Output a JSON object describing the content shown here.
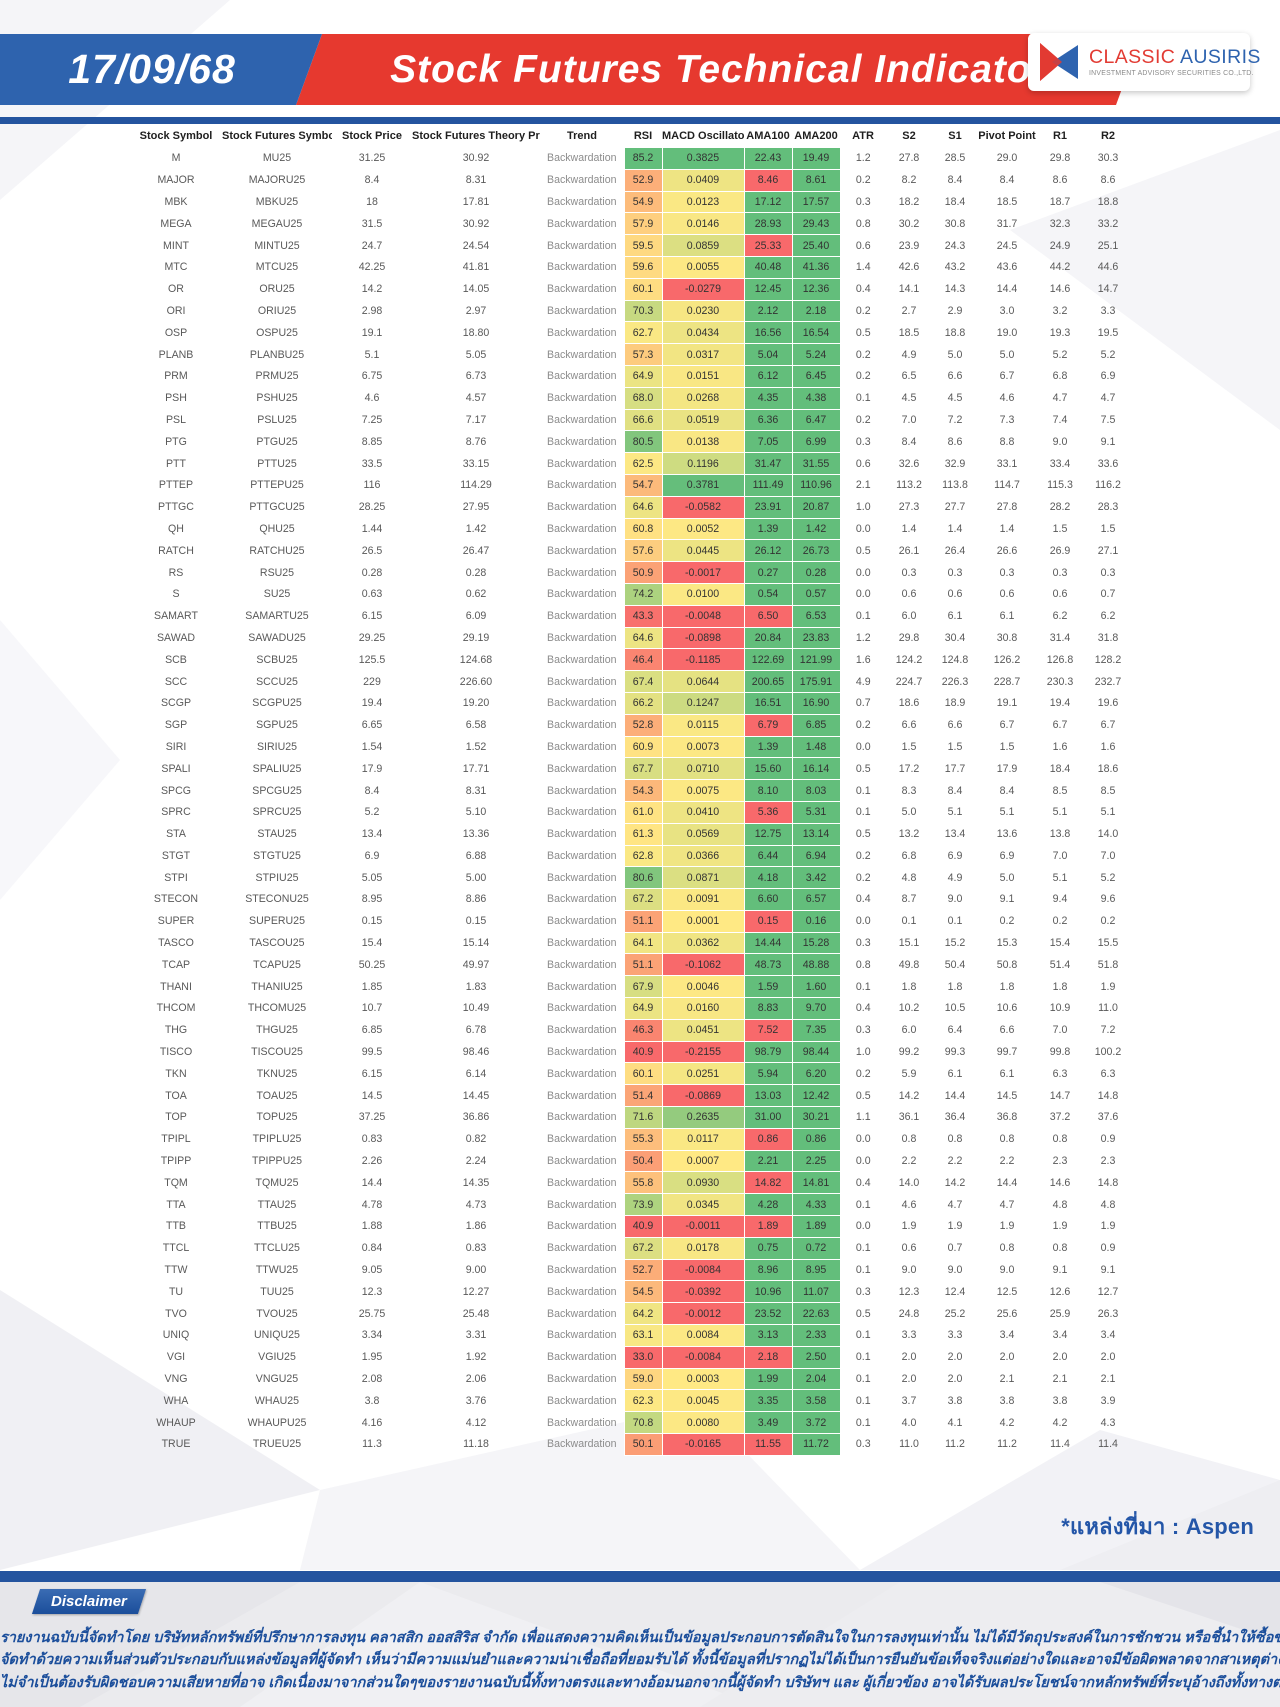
{
  "header": {
    "date": "17/09/68",
    "title": "Stock Futures Technical Indicator",
    "logo": {
      "name_red": "CLASSIC",
      "name_blue": "AUSIRIS",
      "subtitle": "INVESTMENT ADVISORY SECURITIES CO.,LTD."
    }
  },
  "table": {
    "columns": [
      "Stock Symbol",
      "Stock Futures Symbol",
      "Stock Price",
      "Stock Futures Theory Price",
      "Trend",
      "RSI",
      "MACD Oscillator",
      "AMA100",
      "AMA200",
      "ATR",
      "S2",
      "S1",
      "Pivot Point",
      "R1",
      "R2"
    ],
    "rows": [
      [
        "M",
        "MU25",
        "31.25",
        "30.92",
        "Backwardation",
        "85.2",
        "0.3825",
        "22.43",
        "19.49",
        "1.2",
        "27.8",
        "28.5",
        "29.0",
        "29.8",
        "30.3"
      ],
      [
        "MAJOR",
        "MAJORU25",
        "8.4",
        "8.31",
        "Backwardation",
        "52.9",
        "0.0409",
        "8.46",
        "8.61",
        "0.2",
        "8.2",
        "8.4",
        "8.4",
        "8.6",
        "8.6"
      ],
      [
        "MBK",
        "MBKU25",
        "18",
        "17.81",
        "Backwardation",
        "54.9",
        "0.0123",
        "17.12",
        "17.57",
        "0.3",
        "18.2",
        "18.4",
        "18.5",
        "18.7",
        "18.8"
      ],
      [
        "MEGA",
        "MEGAU25",
        "31.5",
        "30.92",
        "Backwardation",
        "57.9",
        "0.0146",
        "28.93",
        "29.43",
        "0.8",
        "30.2",
        "30.8",
        "31.7",
        "32.3",
        "33.2"
      ],
      [
        "MINT",
        "MINTU25",
        "24.7",
        "24.54",
        "Backwardation",
        "59.5",
        "0.0859",
        "25.33",
        "25.40",
        "0.6",
        "23.9",
        "24.3",
        "24.5",
        "24.9",
        "25.1"
      ],
      [
        "MTC",
        "MTCU25",
        "42.25",
        "41.81",
        "Backwardation",
        "59.6",
        "0.0055",
        "40.48",
        "41.36",
        "1.4",
        "42.6",
        "43.2",
        "43.6",
        "44.2",
        "44.6"
      ],
      [
        "OR",
        "ORU25",
        "14.2",
        "14.05",
        "Backwardation",
        "60.1",
        "-0.0279",
        "12.45",
        "12.36",
        "0.4",
        "14.1",
        "14.3",
        "14.4",
        "14.6",
        "14.7"
      ],
      [
        "ORI",
        "ORIU25",
        "2.98",
        "2.97",
        "Backwardation",
        "70.3",
        "0.0230",
        "2.12",
        "2.18",
        "0.2",
        "2.7",
        "2.9",
        "3.0",
        "3.2",
        "3.3"
      ],
      [
        "OSP",
        "OSPU25",
        "19.1",
        "18.80",
        "Backwardation",
        "62.7",
        "0.0434",
        "16.56",
        "16.54",
        "0.5",
        "18.5",
        "18.8",
        "19.0",
        "19.3",
        "19.5"
      ],
      [
        "PLANB",
        "PLANBU25",
        "5.1",
        "5.05",
        "Backwardation",
        "57.3",
        "0.0317",
        "5.04",
        "5.24",
        "0.2",
        "4.9",
        "5.0",
        "5.0",
        "5.2",
        "5.2"
      ],
      [
        "PRM",
        "PRMU25",
        "6.75",
        "6.73",
        "Backwardation",
        "64.9",
        "0.0151",
        "6.12",
        "6.45",
        "0.2",
        "6.5",
        "6.6",
        "6.7",
        "6.8",
        "6.9"
      ],
      [
        "PSH",
        "PSHU25",
        "4.6",
        "4.57",
        "Backwardation",
        "68.0",
        "0.0268",
        "4.35",
        "4.38",
        "0.1",
        "4.5",
        "4.5",
        "4.6",
        "4.7",
        "4.7"
      ],
      [
        "PSL",
        "PSLU25",
        "7.25",
        "7.17",
        "Backwardation",
        "66.6",
        "0.0519",
        "6.36",
        "6.47",
        "0.2",
        "7.0",
        "7.2",
        "7.3",
        "7.4",
        "7.5"
      ],
      [
        "PTG",
        "PTGU25",
        "8.85",
        "8.76",
        "Backwardation",
        "80.5",
        "0.0138",
        "7.05",
        "6.99",
        "0.3",
        "8.4",
        "8.6",
        "8.8",
        "9.0",
        "9.1"
      ],
      [
        "PTT",
        "PTTU25",
        "33.5",
        "33.15",
        "Backwardation",
        "62.5",
        "0.1196",
        "31.47",
        "31.55",
        "0.6",
        "32.6",
        "32.9",
        "33.1",
        "33.4",
        "33.6"
      ],
      [
        "PTTEP",
        "PTTEPU25",
        "116",
        "114.29",
        "Backwardation",
        "54.7",
        "0.3781",
        "111.49",
        "110.96",
        "2.1",
        "113.2",
        "113.8",
        "114.7",
        "115.3",
        "116.2"
      ],
      [
        "PTTGC",
        "PTTGCU25",
        "28.25",
        "27.95",
        "Backwardation",
        "64.6",
        "-0.0582",
        "23.91",
        "20.87",
        "1.0",
        "27.3",
        "27.7",
        "27.8",
        "28.2",
        "28.3"
      ],
      [
        "QH",
        "QHU25",
        "1.44",
        "1.42",
        "Backwardation",
        "60.8",
        "0.0052",
        "1.39",
        "1.42",
        "0.0",
        "1.4",
        "1.4",
        "1.4",
        "1.5",
        "1.5"
      ],
      [
        "RATCH",
        "RATCHU25",
        "26.5",
        "26.47",
        "Backwardation",
        "57.6",
        "0.0445",
        "26.12",
        "26.73",
        "0.5",
        "26.1",
        "26.4",
        "26.6",
        "26.9",
        "27.1"
      ],
      [
        "RS",
        "RSU25",
        "0.28",
        "0.28",
        "Backwardation",
        "50.9",
        "-0.0017",
        "0.27",
        "0.28",
        "0.0",
        "0.3",
        "0.3",
        "0.3",
        "0.3",
        "0.3"
      ],
      [
        "S",
        "SU25",
        "0.63",
        "0.62",
        "Backwardation",
        "74.2",
        "0.0100",
        "0.54",
        "0.57",
        "0.0",
        "0.6",
        "0.6",
        "0.6",
        "0.6",
        "0.7"
      ],
      [
        "SAMART",
        "SAMARTU25",
        "6.15",
        "6.09",
        "Backwardation",
        "43.3",
        "-0.0048",
        "6.50",
        "6.53",
        "0.1",
        "6.0",
        "6.1",
        "6.1",
        "6.2",
        "6.2"
      ],
      [
        "SAWAD",
        "SAWADU25",
        "29.25",
        "29.19",
        "Backwardation",
        "64.6",
        "-0.0898",
        "20.84",
        "23.83",
        "1.2",
        "29.8",
        "30.4",
        "30.8",
        "31.4",
        "31.8"
      ],
      [
        "SCB",
        "SCBU25",
        "125.5",
        "124.68",
        "Backwardation",
        "46.4",
        "-0.1185",
        "122.69",
        "121.99",
        "1.6",
        "124.2",
        "124.8",
        "126.2",
        "126.8",
        "128.2"
      ],
      [
        "SCC",
        "SCCU25",
        "229",
        "226.60",
        "Backwardation",
        "67.4",
        "0.0644",
        "200.65",
        "175.91",
        "4.9",
        "224.7",
        "226.3",
        "228.7",
        "230.3",
        "232.7"
      ],
      [
        "SCGP",
        "SCGPU25",
        "19.4",
        "19.20",
        "Backwardation",
        "66.2",
        "0.1247",
        "16.51",
        "16.90",
        "0.7",
        "18.6",
        "18.9",
        "19.1",
        "19.4",
        "19.6"
      ],
      [
        "SGP",
        "SGPU25",
        "6.65",
        "6.58",
        "Backwardation",
        "52.8",
        "0.0115",
        "6.79",
        "6.85",
        "0.2",
        "6.6",
        "6.6",
        "6.7",
        "6.7",
        "6.7"
      ],
      [
        "SIRI",
        "SIRIU25",
        "1.54",
        "1.52",
        "Backwardation",
        "60.9",
        "0.0073",
        "1.39",
        "1.48",
        "0.0",
        "1.5",
        "1.5",
        "1.5",
        "1.6",
        "1.6"
      ],
      [
        "SPALI",
        "SPALIU25",
        "17.9",
        "17.71",
        "Backwardation",
        "67.7",
        "0.0710",
        "15.60",
        "16.14",
        "0.5",
        "17.2",
        "17.7",
        "17.9",
        "18.4",
        "18.6"
      ],
      [
        "SPCG",
        "SPCGU25",
        "8.4",
        "8.31",
        "Backwardation",
        "54.3",
        "0.0075",
        "8.10",
        "8.03",
        "0.1",
        "8.3",
        "8.4",
        "8.4",
        "8.5",
        "8.5"
      ],
      [
        "SPRC",
        "SPRCU25",
        "5.2",
        "5.10",
        "Backwardation",
        "61.0",
        "0.0410",
        "5.36",
        "5.31",
        "0.1",
        "5.0",
        "5.1",
        "5.1",
        "5.1",
        "5.1"
      ],
      [
        "STA",
        "STAU25",
        "13.4",
        "13.36",
        "Backwardation",
        "61.3",
        "0.0569",
        "12.75",
        "13.14",
        "0.5",
        "13.2",
        "13.4",
        "13.6",
        "13.8",
        "14.0"
      ],
      [
        "STGT",
        "STGTU25",
        "6.9",
        "6.88",
        "Backwardation",
        "62.8",
        "0.0366",
        "6.44",
        "6.94",
        "0.2",
        "6.8",
        "6.9",
        "6.9",
        "7.0",
        "7.0"
      ],
      [
        "STPI",
        "STPIU25",
        "5.05",
        "5.00",
        "Backwardation",
        "80.6",
        "0.0871",
        "4.18",
        "3.42",
        "0.2",
        "4.8",
        "4.9",
        "5.0",
        "5.1",
        "5.2"
      ],
      [
        "STECON",
        "STECONU25",
        "8.95",
        "8.86",
        "Backwardation",
        "67.2",
        "0.0091",
        "6.60",
        "6.57",
        "0.4",
        "8.7",
        "9.0",
        "9.1",
        "9.4",
        "9.6"
      ],
      [
        "SUPER",
        "SUPERU25",
        "0.15",
        "0.15",
        "Backwardation",
        "51.1",
        "0.0001",
        "0.15",
        "0.16",
        "0.0",
        "0.1",
        "0.1",
        "0.2",
        "0.2",
        "0.2"
      ],
      [
        "TASCO",
        "TASCOU25",
        "15.4",
        "15.14",
        "Backwardation",
        "64.1",
        "0.0362",
        "14.44",
        "15.28",
        "0.3",
        "15.1",
        "15.2",
        "15.3",
        "15.4",
        "15.5"
      ],
      [
        "TCAP",
        "TCAPU25",
        "50.25",
        "49.97",
        "Backwardation",
        "51.1",
        "-0.1062",
        "48.73",
        "48.88",
        "0.8",
        "49.8",
        "50.4",
        "50.8",
        "51.4",
        "51.8"
      ],
      [
        "THANI",
        "THANIU25",
        "1.85",
        "1.83",
        "Backwardation",
        "67.9",
        "0.0046",
        "1.59",
        "1.60",
        "0.1",
        "1.8",
        "1.8",
        "1.8",
        "1.8",
        "1.9"
      ],
      [
        "THCOM",
        "THCOMU25",
        "10.7",
        "10.49",
        "Backwardation",
        "64.9",
        "0.0160",
        "8.83",
        "9.70",
        "0.4",
        "10.2",
        "10.5",
        "10.6",
        "10.9",
        "11.0"
      ],
      [
        "THG",
        "THGU25",
        "6.85",
        "6.78",
        "Backwardation",
        "46.3",
        "0.0451",
        "7.52",
        "7.35",
        "0.3",
        "6.0",
        "6.4",
        "6.6",
        "7.0",
        "7.2"
      ],
      [
        "TISCO",
        "TISCOU25",
        "99.5",
        "98.46",
        "Backwardation",
        "40.9",
        "-0.2155",
        "98.79",
        "98.44",
        "1.0",
        "99.2",
        "99.3",
        "99.7",
        "99.8",
        "100.2"
      ],
      [
        "TKN",
        "TKNU25",
        "6.15",
        "6.14",
        "Backwardation",
        "60.1",
        "0.0251",
        "5.94",
        "6.20",
        "0.2",
        "5.9",
        "6.1",
        "6.1",
        "6.3",
        "6.3"
      ],
      [
        "TOA",
        "TOAU25",
        "14.5",
        "14.45",
        "Backwardation",
        "51.4",
        "-0.0869",
        "13.03",
        "12.42",
        "0.5",
        "14.2",
        "14.4",
        "14.5",
        "14.7",
        "14.8"
      ],
      [
        "TOP",
        "TOPU25",
        "37.25",
        "36.86",
        "Backwardation",
        "71.6",
        "0.2635",
        "31.00",
        "30.21",
        "1.1",
        "36.1",
        "36.4",
        "36.8",
        "37.2",
        "37.6"
      ],
      [
        "TPIPL",
        "TPIPLU25",
        "0.83",
        "0.82",
        "Backwardation",
        "55.3",
        "0.0117",
        "0.86",
        "0.86",
        "0.0",
        "0.8",
        "0.8",
        "0.8",
        "0.8",
        "0.9"
      ],
      [
        "TPIPP",
        "TPIPPU25",
        "2.26",
        "2.24",
        "Backwardation",
        "50.4",
        "0.0007",
        "2.21",
        "2.25",
        "0.0",
        "2.2",
        "2.2",
        "2.2",
        "2.3",
        "2.3"
      ],
      [
        "TQM",
        "TQMU25",
        "14.4",
        "14.35",
        "Backwardation",
        "55.8",
        "0.0930",
        "14.82",
        "14.81",
        "0.4",
        "14.0",
        "14.2",
        "14.4",
        "14.6",
        "14.8"
      ],
      [
        "TTA",
        "TTAU25",
        "4.78",
        "4.73",
        "Backwardation",
        "73.9",
        "0.0345",
        "4.28",
        "4.33",
        "0.1",
        "4.6",
        "4.7",
        "4.7",
        "4.8",
        "4.8"
      ],
      [
        "TTB",
        "TTBU25",
        "1.88",
        "1.86",
        "Backwardation",
        "40.9",
        "-0.0011",
        "1.89",
        "1.89",
        "0.0",
        "1.9",
        "1.9",
        "1.9",
        "1.9",
        "1.9"
      ],
      [
        "TTCL",
        "TTCLU25",
        "0.84",
        "0.83",
        "Backwardation",
        "67.2",
        "0.0178",
        "0.75",
        "0.72",
        "0.1",
        "0.6",
        "0.7",
        "0.8",
        "0.8",
        "0.9"
      ],
      [
        "TTW",
        "TTWU25",
        "9.05",
        "9.00",
        "Backwardation",
        "52.7",
        "-0.0084",
        "8.96",
        "8.95",
        "0.1",
        "9.0",
        "9.0",
        "9.0",
        "9.1",
        "9.1"
      ],
      [
        "TU",
        "TUU25",
        "12.3",
        "12.27",
        "Backwardation",
        "54.5",
        "-0.0392",
        "10.96",
        "11.07",
        "0.3",
        "12.3",
        "12.4",
        "12.5",
        "12.6",
        "12.7"
      ],
      [
        "TVO",
        "TVOU25",
        "25.75",
        "25.48",
        "Backwardation",
        "64.2",
        "-0.0012",
        "23.52",
        "22.63",
        "0.5",
        "24.8",
        "25.2",
        "25.6",
        "25.9",
        "26.3"
      ],
      [
        "UNIQ",
        "UNIQU25",
        "3.34",
        "3.31",
        "Backwardation",
        "63.1",
        "0.0084",
        "3.13",
        "2.33",
        "0.1",
        "3.3",
        "3.3",
        "3.4",
        "3.4",
        "3.4"
      ],
      [
        "VGI",
        "VGIU25",
        "1.95",
        "1.92",
        "Backwardation",
        "33.0",
        "-0.0084",
        "2.18",
        "2.50",
        "0.1",
        "2.0",
        "2.0",
        "2.0",
        "2.0",
        "2.0"
      ],
      [
        "VNG",
        "VNGU25",
        "2.08",
        "2.06",
        "Backwardation",
        "59.0",
        "0.0003",
        "1.99",
        "2.04",
        "0.1",
        "2.0",
        "2.0",
        "2.1",
        "2.1",
        "2.1"
      ],
      [
        "WHA",
        "WHAU25",
        "3.8",
        "3.76",
        "Backwardation",
        "62.3",
        "0.0045",
        "3.35",
        "3.58",
        "0.1",
        "3.7",
        "3.8",
        "3.8",
        "3.8",
        "3.9"
      ],
      [
        "WHAUP",
        "WHAUPU25",
        "4.16",
        "4.12",
        "Backwardation",
        "70.8",
        "0.0080",
        "3.49",
        "3.72",
        "0.1",
        "4.0",
        "4.1",
        "4.2",
        "4.2",
        "4.3"
      ],
      [
        "TRUE",
        "TRUEU25",
        "11.3",
        "11.18",
        "Backwardation",
        "50.1",
        "-0.0165",
        "11.55",
        "11.72",
        "0.3",
        "11.0",
        "11.2",
        "11.2",
        "11.4",
        "11.4"
      ]
    ]
  },
  "source_note": "*แหล่งที่มา : Aspen",
  "disclaimer": {
    "badge": "Disclaimer",
    "lines": [
      "รายงานฉบับนี้จัดทำโดย บริษัทหลักทรัพย์ที่ปรึกษาการลงทุน คลาสสิก ออสสิริส จำกัด  เพื่อแสดงความคิดเห็นเป็นข้อมูลประกอบการตัดสินใจในการลงทุนเท่านั้น ไม่ได้มีวัตถุประสงค์ในการชักชวน หรือชี้นำให้ซื้อขายแต่อย่างใดซึ่งรายงานนี้",
      "จัดทำด้วยความเห็นส่วนตัวประกอบกับแหล่งข้อมูลที่ผู้จัดทำ เห็นว่ามีความแม่นยำและความน่าเชื่อถือที่ยอมรับได้ ทั้งนี้ข้อมูลที่ปรากฏไม่ได้เป็นการยืนยันข้อเท็จจริงแต่อย่างใดและอาจมีข้อผิดพลาดจากสาเหตุต่างๆซึ่งทั้งผู้จัดทำ  บริษัทฯ  และ  ผู้เกี่ยวข้อง",
      "ไม่จำเป็นต้องรับผิดชอบความเสียหายที่อาจ เกิดเนื่องมาจากส่วนใดๆของรายงานฉบับนี้ทั้งทางตรงและทางอ้อมนอกจากนี้ผู้จัดทำ บริษัทฯ และ ผู้เกี่ยวข้อง  อาจได้รับผลประโยชน์จากหลักทรัพย์ที่ระบุอ้างถึงทั้งทางตรงและทางอ้อม"
    ]
  },
  "colors": {
    "banner_blue": "#2E63AE",
    "banner_red": "#E6392F",
    "divider_navy": "#24549F",
    "scale_red": "#F8696B",
    "scale_yellow": "#FFE984",
    "scale_green": "#63BE7B",
    "disclaimer_blue": "#1B4E9B",
    "logo_red": "#E23B33",
    "logo_blue": "#2E63AF",
    "source_note_blue": "#2456A8"
  }
}
